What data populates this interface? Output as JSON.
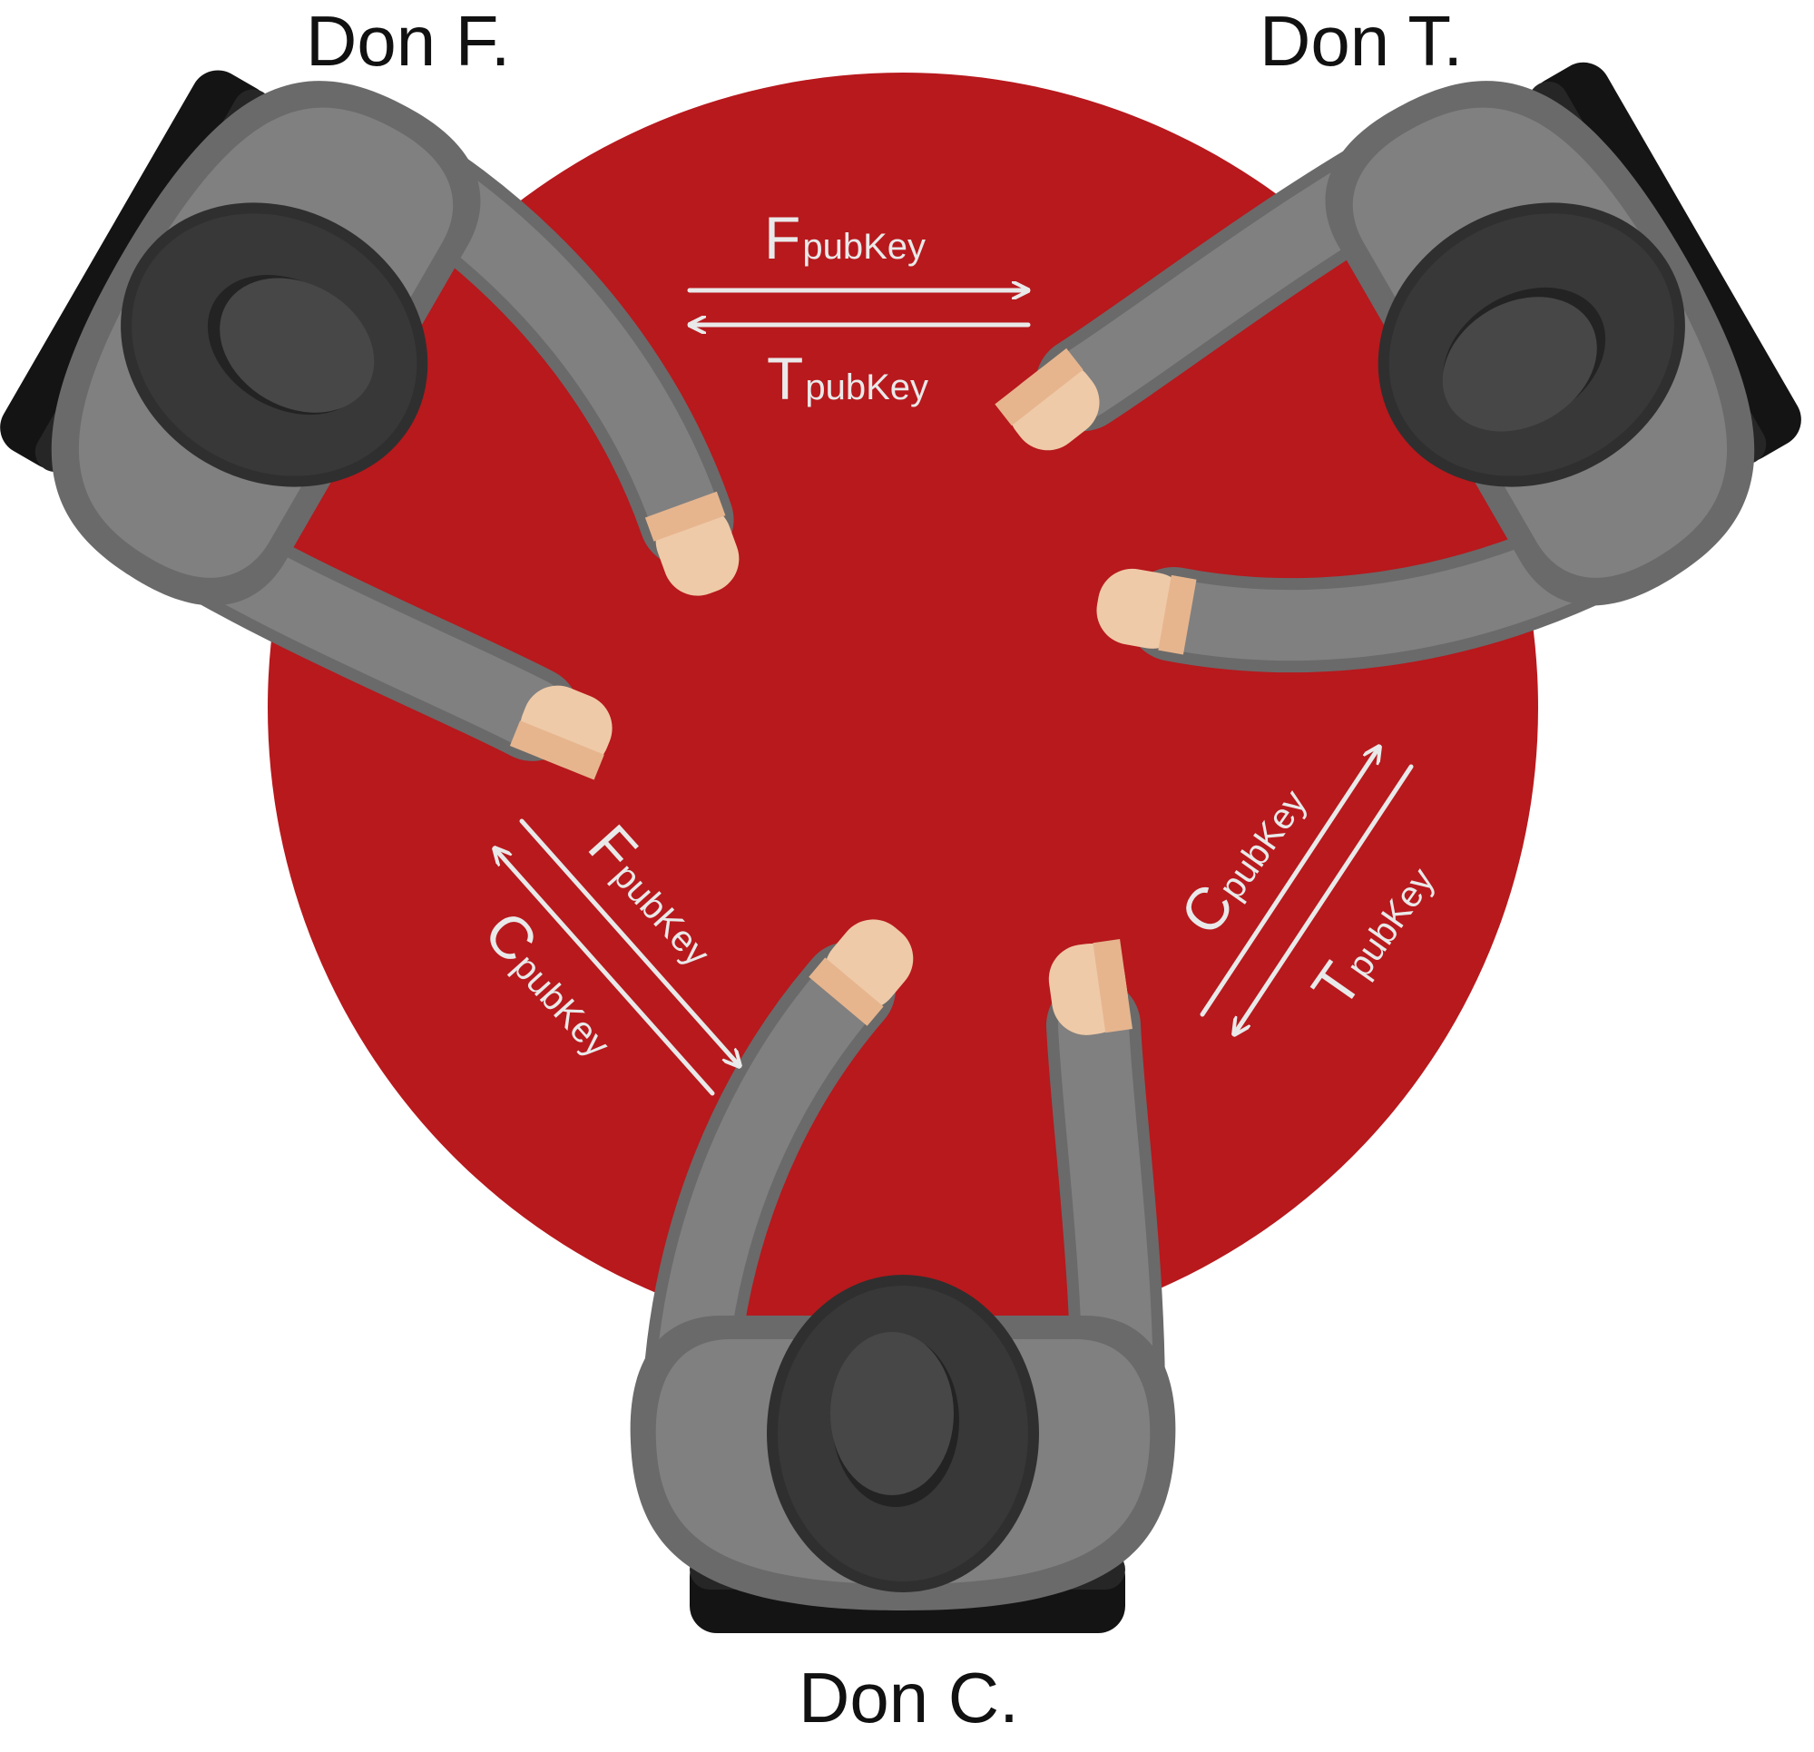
{
  "participants": {
    "f": {
      "name": "Don F."
    },
    "t": {
      "name": "Don T."
    },
    "c": {
      "name": "Don C."
    }
  },
  "exchanges": {
    "ft": {
      "upper": {
        "letter": "F",
        "suffix": "pubKey"
      },
      "lower": {
        "letter": "T",
        "suffix": "pubKey"
      }
    },
    "fc": {
      "upper": {
        "letter": "F",
        "suffix": "pubKey"
      },
      "lower": {
        "letter": "C",
        "suffix": "pubKey"
      }
    },
    "tc": {
      "upper": {
        "letter": "C",
        "suffix": "pubKey"
      },
      "lower": {
        "letter": "T",
        "suffix": "pubKey"
      }
    }
  },
  "colors": {
    "table": "#b7191d",
    "suit": "#808080",
    "suit_edge": "#6a6a6a",
    "hat": "#333333",
    "hat_crown": "#474747",
    "skin": "#efcaa8",
    "skin_shade": "#e6b58e",
    "chair": "#1f1f1f",
    "arrows_text": "#e9e9e9"
  }
}
